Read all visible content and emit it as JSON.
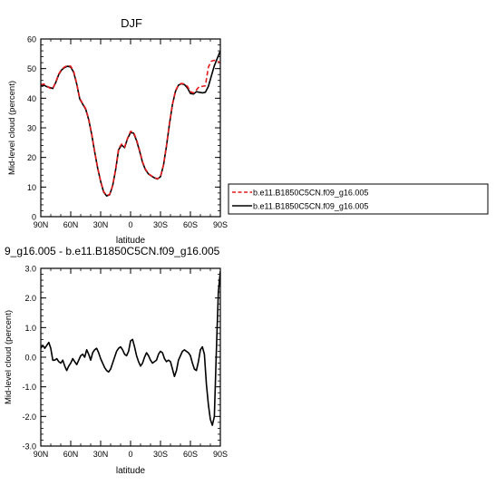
{
  "chart_data": [
    {
      "type": "line",
      "title": "DJF",
      "xlabel": "latitude",
      "ylabel": "Mid-level cloud (percent)",
      "xlim": [
        90,
        -90
      ],
      "ylim": [
        0,
        60
      ],
      "xticks": [
        90,
        60,
        30,
        0,
        -30,
        -60,
        -90
      ],
      "xtick_labels": [
        "90N",
        "60N",
        "30N",
        "0",
        "30S",
        "60S",
        "90S"
      ],
      "yticks": [
        0,
        10,
        20,
        30,
        40,
        50,
        60
      ],
      "ytick_labels": [
        "0",
        "10",
        "20",
        "30",
        "40",
        "50",
        "60"
      ],
      "legend_position": "right",
      "series": [
        {
          "name": "b.e11.B1850C5CN.f09_g16.005",
          "color": "#e31a1c",
          "dash": "dashed",
          "x": [
            90,
            87,
            84,
            81,
            78,
            75,
            72,
            69,
            66,
            63,
            60,
            57,
            54,
            51,
            48,
            45,
            42,
            39,
            36,
            33,
            30,
            27,
            24,
            21,
            18,
            15,
            12,
            9,
            6,
            3,
            0,
            -3,
            -6,
            -9,
            -12,
            -15,
            -18,
            -21,
            -24,
            -27,
            -30,
            -33,
            -36,
            -39,
            -42,
            -45,
            -48,
            -51,
            -54,
            -57,
            -60,
            -63,
            -66,
            -69,
            -72,
            -75,
            -78,
            -81,
            -84,
            -87,
            -90
          ],
          "y": [
            44.5,
            44.8,
            44.2,
            43.4,
            43.2,
            45.5,
            48.2,
            49.8,
            50.6,
            51.0,
            50.8,
            49.0,
            45.0,
            40.0,
            38.2,
            36.5,
            33.0,
            28.0,
            22.0,
            16.5,
            12.0,
            8.5,
            7.2,
            7.5,
            10.5,
            16.0,
            23.0,
            24.5,
            23.5,
            26.5,
            28.8,
            28.5,
            26.0,
            22.5,
            18.5,
            16.0,
            14.5,
            13.8,
            13.2,
            12.8,
            13.5,
            17.5,
            24.0,
            31.5,
            38.0,
            42.5,
            44.5,
            45.0,
            44.8,
            44.0,
            42.2,
            41.8,
            42.8,
            44.0,
            44.0,
            44.2,
            50.5,
            52.5,
            52.8,
            52.5,
            52.0
          ]
        },
        {
          "name": "b.e11.B1850C5CN.f09_g16.005",
          "color": "#000000",
          "dash": "solid",
          "x": [
            90,
            87,
            84,
            81,
            78,
            75,
            72,
            69,
            66,
            63,
            60,
            57,
            54,
            51,
            48,
            45,
            42,
            39,
            36,
            33,
            30,
            27,
            24,
            21,
            18,
            15,
            12,
            9,
            6,
            3,
            0,
            -3,
            -6,
            -9,
            -12,
            -15,
            -18,
            -21,
            -24,
            -27,
            -30,
            -33,
            -36,
            -39,
            -42,
            -45,
            -48,
            -51,
            -54,
            -57,
            -60,
            -63,
            -66,
            -69,
            -72,
            -75,
            -78,
            -81,
            -84,
            -87,
            -90
          ],
          "y": [
            44.2,
            44.4,
            43.9,
            43.6,
            43.3,
            45.3,
            48.0,
            49.6,
            50.4,
            50.8,
            50.5,
            48.7,
            44.8,
            39.8,
            38.0,
            36.3,
            32.8,
            27.8,
            21.9,
            16.4,
            11.9,
            8.3,
            7.0,
            7.4,
            10.4,
            15.8,
            22.6,
            24.2,
            23.3,
            26.4,
            28.4,
            28.2,
            25.7,
            22.2,
            18.3,
            15.8,
            14.4,
            13.7,
            13.1,
            12.7,
            13.5,
            17.4,
            23.8,
            31.3,
            37.9,
            42.3,
            44.4,
            44.9,
            44.6,
            43.5,
            41.6,
            41.4,
            42.2,
            42.0,
            41.8,
            42.0,
            44.0,
            47.5,
            51.0,
            53.5,
            56.0
          ]
        }
      ]
    },
    {
      "type": "line",
      "title": "9_g16.005 - b.e11.B1850C5CN.f09_g16.005",
      "xlabel": "latitude",
      "ylabel": "Mid-level cloud (percent)",
      "xlim": [
        90,
        -90
      ],
      "ylim": [
        -3,
        3
      ],
      "xticks": [
        90,
        60,
        30,
        0,
        -30,
        -60,
        -90
      ],
      "xtick_labels": [
        "90N",
        "60N",
        "30N",
        "0",
        "30S",
        "60S",
        "90S"
      ],
      "yticks": [
        -3,
        -2,
        -1,
        0,
        1,
        2,
        3
      ],
      "ytick_labels": [
        "-3.0",
        "-2.0",
        "-1.0",
        "0.0",
        "1.0",
        "2.0",
        "3.0"
      ],
      "series": [
        {
          "color": "#000000",
          "dash": "solid",
          "x": [
            90,
            88,
            86,
            84,
            82,
            80,
            78,
            76,
            74,
            72,
            70,
            68,
            66,
            64,
            62,
            60,
            58,
            56,
            54,
            52,
            50,
            48,
            46,
            44,
            42,
            40,
            38,
            36,
            34,
            32,
            30,
            28,
            26,
            24,
            22,
            20,
            18,
            16,
            14,
            12,
            10,
            8,
            6,
            4,
            2,
            0,
            -2,
            -4,
            -6,
            -8,
            -10,
            -12,
            -14,
            -16,
            -18,
            -20,
            -22,
            -24,
            -26,
            -28,
            -30,
            -32,
            -34,
            -36,
            -38,
            -40,
            -42,
            -44,
            -46,
            -48,
            -50,
            -52,
            -54,
            -56,
            -58,
            -60,
            -62,
            -64,
            -66,
            -68,
            -70,
            -72,
            -74,
            -76,
            -78,
            -80,
            -82,
            -84,
            -86,
            -88,
            -90
          ],
          "y": [
            0.3,
            0.4,
            0.3,
            0.4,
            0.5,
            0.3,
            -0.1,
            -0.1,
            -0.05,
            -0.15,
            -0.2,
            -0.1,
            -0.3,
            -0.45,
            -0.3,
            -0.2,
            -0.05,
            -0.15,
            -0.25,
            -0.1,
            0.05,
            0.1,
            0.0,
            0.25,
            0.1,
            -0.1,
            0.15,
            0.25,
            0.3,
            0.15,
            -0.05,
            -0.2,
            -0.35,
            -0.45,
            -0.5,
            -0.4,
            -0.2,
            0.0,
            0.2,
            0.3,
            0.35,
            0.25,
            0.1,
            0.05,
            0.2,
            0.55,
            0.6,
            0.35,
            0.05,
            -0.15,
            -0.3,
            -0.2,
            0.0,
            0.15,
            0.05,
            -0.1,
            -0.2,
            -0.15,
            -0.1,
            0.1,
            0.2,
            0.15,
            -0.05,
            -0.15,
            -0.1,
            -0.15,
            -0.4,
            -0.65,
            -0.45,
            -0.1,
            0.05,
            0.2,
            0.25,
            0.2,
            0.15,
            0.05,
            -0.2,
            -0.4,
            -0.45,
            -0.15,
            0.25,
            0.35,
            0.1,
            -0.9,
            -1.6,
            -2.1,
            -2.3,
            -2.0,
            0.2,
            2.2,
            2.9
          ]
        }
      ]
    }
  ]
}
